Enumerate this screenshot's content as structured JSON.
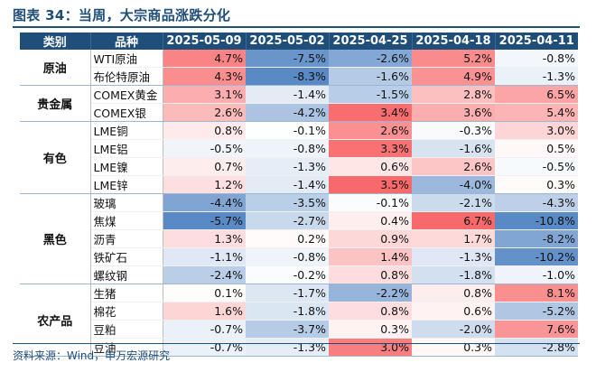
{
  "title": "图表 34：当周，大宗商品涨跌分化",
  "table": {
    "headers": [
      "类别",
      "品种",
      "2025-05-09",
      "2025-05-02",
      "2025-04-25",
      "2025-04-18",
      "2025-04-11"
    ],
    "groups": [
      {
        "category": "原油",
        "rows": [
          {
            "item": "WTI原油",
            "values": [
              "4.7%",
              "-7.5%",
              "-2.6%",
              "5.2%",
              "-0.8%"
            ]
          },
          {
            "item": "布伦特原油",
            "values": [
              "4.3%",
              "-8.3%",
              "-1.6%",
              "4.9%",
              "-1.3%"
            ]
          }
        ]
      },
      {
        "category": "贵金属",
        "rows": [
          {
            "item": "COMEX黄金",
            "values": [
              "3.1%",
              "-1.4%",
              "-1.5%",
              "2.8%",
              "6.5%"
            ]
          },
          {
            "item": "COMEX银",
            "values": [
              "2.6%",
              "-4.2%",
              "3.4%",
              "3.6%",
              "5.4%"
            ]
          }
        ]
      },
      {
        "category": "有色",
        "rows": [
          {
            "item": "LME铜",
            "values": [
              "0.8%",
              "-0.1%",
              "2.6%",
              "-0.3%",
              "3.0%"
            ]
          },
          {
            "item": "LME铝",
            "values": [
              "-0.5%",
              "-0.8%",
              "3.3%",
              "-1.6%",
              "0.5%"
            ]
          },
          {
            "item": "LME镍",
            "values": [
              "0.7%",
              "-1.3%",
              "0.6%",
              "2.6%",
              "-0.5%"
            ]
          },
          {
            "item": "LME锌",
            "values": [
              "1.2%",
              "-1.4%",
              "3.5%",
              "-4.0%",
              "0.3%"
            ]
          }
        ]
      },
      {
        "category": "黑色",
        "rows": [
          {
            "item": "玻璃",
            "values": [
              "-4.4%",
              "-3.5%",
              "-0.1%",
              "-2.1%",
              "-4.3%"
            ]
          },
          {
            "item": "焦煤",
            "values": [
              "-5.7%",
              "-2.7%",
              "0.4%",
              "6.7%",
              "-10.8%"
            ]
          },
          {
            "item": "沥青",
            "values": [
              "1.3%",
              "0.2%",
              "0.9%",
              "1.7%",
              "-8.2%"
            ]
          },
          {
            "item": "铁矿石",
            "values": [
              "-1.1%",
              "-0.8%",
              "1.4%",
              "-1.3%",
              "-10.2%"
            ]
          },
          {
            "item": "螺纹钢",
            "values": [
              "-2.4%",
              "-0.2%",
              "0.8%",
              "-1.8%",
              "-1.0%"
            ]
          }
        ]
      },
      {
        "category": "农产品",
        "rows": [
          {
            "item": "生猪",
            "values": [
              "0.1%",
              "-1.7%",
              "-2.2%",
              "0.8%",
              "8.1%"
            ]
          },
          {
            "item": "棉花",
            "values": [
              "1.6%",
              "-1.8%",
              "0.8%",
              "0.6%",
              "-5.2%"
            ]
          },
          {
            "item": "豆粕",
            "values": [
              "-0.7%",
              "-3.7%",
              "0.3%",
              "-2.0%",
              "7.6%"
            ]
          },
          {
            "item": "豆油",
            "values": [
              "-0.7%",
              "-1.3%",
              "3.0%",
              "0.3%",
              "-2.8%"
            ]
          }
        ]
      }
    ]
  },
  "colors": {
    "header_bg": "#1f4e79",
    "positive_max": "#f8696b",
    "negative_max": "#5a8ac6",
    "neutral": "#ffffff"
  },
  "source": "资料来源：Wind，申万宏源研究"
}
